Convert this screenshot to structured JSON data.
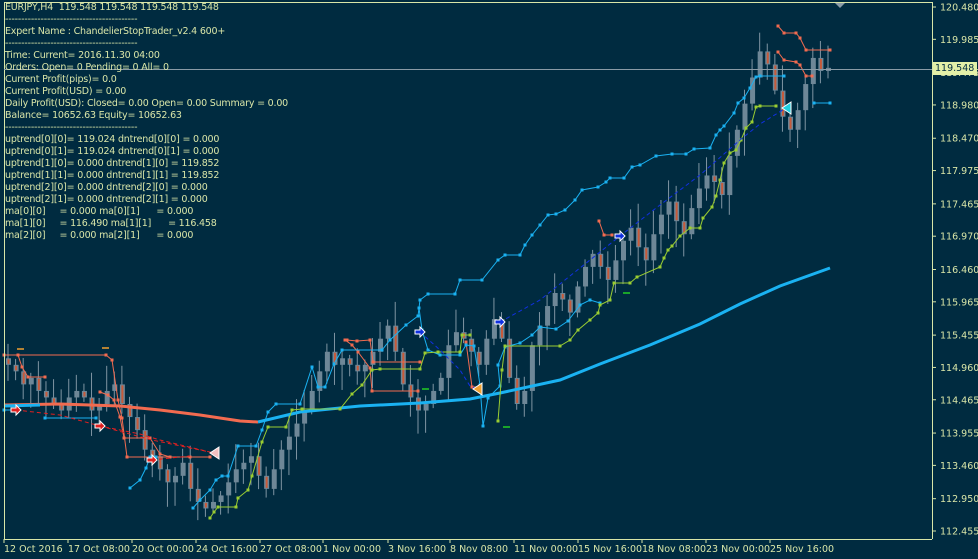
{
  "chart_data": {
    "type": "candlestick",
    "symbol": "EURJPY",
    "timeframe": "H4",
    "header": "EURJPY,H4  119.548 119.548 119.548 119.548",
    "ohlc_last": {
      "open": 119.548,
      "high": 119.548,
      "low": 119.548,
      "close": 119.548
    },
    "current_price": 119.548,
    "price_axis": {
      "min": 112.455,
      "max": 120.48,
      "ticks": [
        "120.480",
        "119.985",
        "119.475",
        "118.980",
        "118.470",
        "117.975",
        "117.465",
        "116.970",
        "116.460",
        "115.965",
        "115.455",
        "114.960",
        "114.465",
        "113.955",
        "113.460",
        "112.950",
        "112.455"
      ]
    },
    "time_axis": {
      "ticks": [
        "12 Oct 2016",
        "17 Oct 08:00",
        "20 Oct 00:00",
        "24 Oct 16:00",
        "27 Oct 08:00",
        "1 Nov 00:00",
        "3 Nov 16:00",
        "8 Nov 08:00",
        "11 Nov 00:00",
        "15 Nov 16:00",
        "18 Nov 08:00",
        "23 Nov 00:00",
        "25 Nov 16:00"
      ]
    },
    "series": [
      {
        "name": "EURJPY H4 candles (approx close path)",
        "values": [
          115.0,
          114.9,
          114.7,
          114.8,
          114.6,
          114.5,
          114.4,
          114.3,
          114.5,
          114.6,
          114.5,
          114.3,
          114.4,
          114.6,
          114.7,
          114.4,
          114.2,
          114.0,
          113.7,
          113.6,
          113.4,
          113.2,
          113.3,
          113.5,
          113.1,
          112.9,
          112.8,
          112.9,
          113.0,
          113.2,
          113.4,
          113.5,
          113.6,
          113.3,
          113.1,
          113.4,
          113.7,
          113.9,
          114.1,
          114.3,
          114.6,
          114.9,
          115.2,
          115.0,
          115.1,
          115.0,
          114.9,
          115.0,
          115.2,
          115.4,
          115.6,
          115.2,
          114.7,
          114.5,
          114.3,
          114.4,
          114.6,
          114.8,
          115.3,
          115.5,
          115.4,
          115.2,
          115.0,
          115.4,
          115.7,
          115.4,
          114.8,
          114.4,
          114.6,
          115.3,
          115.6,
          115.9,
          116.1,
          116.0,
          115.8,
          116.2,
          116.5,
          116.7,
          116.5,
          116.3,
          116.6,
          116.9,
          117.1,
          116.8,
          116.6,
          117.0,
          117.3,
          117.5,
          117.2,
          117.0,
          117.4,
          117.7,
          117.9,
          117.8,
          117.6,
          118.2,
          118.6,
          119.0,
          119.4,
          119.8,
          119.6,
          119.2,
          118.8,
          118.6,
          118.9,
          119.3,
          119.7,
          119.5,
          119.548
        ]
      },
      {
        "name": "Chandelier down-stop (salmon)",
        "color": "#f26b50"
      },
      {
        "name": "Chandelier up-stop (deep sky blue)",
        "color": "#1ab2f2"
      },
      {
        "name": "Chandelier up-stop slow (yellow-green)",
        "color": "#9acd32"
      },
      {
        "name": "MA (blue/salmon)",
        "values_note": "ma[1][0]=116.490, ma[1][1]=116.458"
      }
    ],
    "title": "EURJPY,H4",
    "xlabel": "",
    "ylabel": "",
    "ylim": [
      112.455,
      120.48
    ],
    "grid": false,
    "legend": "none"
  },
  "info_panel": {
    "lines": [
      "EURJPY,H4  119.548 119.548 119.548 119.548",
      "--------------------------------------------",
      "Expert Name : ChandelierStopTrader_v2.4 600+",
      "--------------------------------------------",
      "Time: Current= 2016.11.30 04:00",
      "Orders: Open= 0 Pending= 0 All= 0",
      "Current Profit(pips)= 0.0",
      "Current Profit(USD) = 0.00",
      "Daily Profit(USD): Closed= 0.00 Open= 0.00 Summary = 0.00",
      "Balance= 10652.63 Equity= 10652.63",
      "--------------------------------------------",
      "uptrend[0][0]= 119.024 dntrend[0][0] = 0.000",
      "uptrend[0][1]= 119.024 dntrend[0][1] = 0.000",
      "uptrend[1][0]= 0.000 dntrend[1][0] = 119.852",
      "uptrend[1][1]= 0.000 dntrend[1][1] = 119.852",
      "uptrend[2][0]= 0.000 dntrend[2][0] = 0.000",
      "uptrend[2][1]= 0.000 dntrend[2][1] = 0.000",
      "ma[0][0]     = 0.000 ma[0][1]      = 0.000",
      "ma[1][0]     = 116.490 ma[1][1]      = 116.458",
      "ma[2][0]     = 0.000 ma[2][1]      = 0.000"
    ]
  },
  "current_price_tag": "119.548",
  "colors": {
    "background": "#002b40",
    "axis": "#d9e6a8",
    "bull_candle": "#5e7f93",
    "bear_candle": "#c75a3a",
    "salmon": "#f26b50",
    "sky": "#1ab2f2",
    "lime": "#9acd32",
    "dash_blue": "#1030e0",
    "dash_red": "#e02020",
    "price_line": "#8a9ba6"
  }
}
